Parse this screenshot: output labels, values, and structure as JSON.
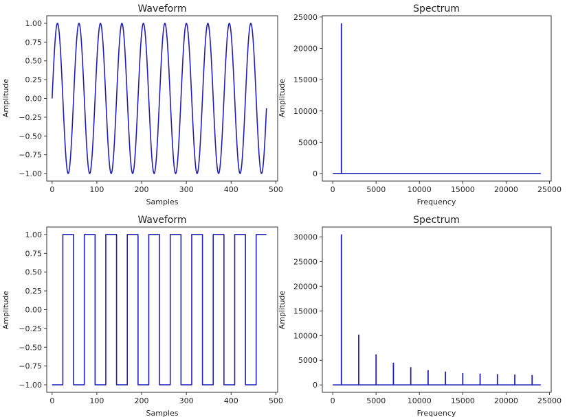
{
  "figure": {
    "line_color": "#1f1fb4",
    "axis_color": "#333333",
    "background": "#ffffff"
  },
  "chart_data": [
    {
      "id": "waveform-sine",
      "type": "line",
      "title": "Waveform",
      "xlabel": "Samples",
      "ylabel": "Amplitude",
      "xlim": [
        -12,
        504
      ],
      "ylim": [
        -1.1,
        1.1
      ],
      "xticks": [
        0,
        100,
        200,
        300,
        400,
        500
      ],
      "xtick_labels": [
        "0",
        "100",
        "200",
        "300",
        "400",
        "500"
      ],
      "yticks": [
        1.0,
        0.75,
        0.5,
        0.25,
        0.0,
        -0.25,
        -0.5,
        -0.75,
        -1.0
      ],
      "ytick_labels": [
        "1.00",
        "0.75",
        "0.50",
        "0.25",
        "0.00",
        "−0.25",
        "−0.50",
        "−0.75",
        "−1.00"
      ],
      "series": [
        {
          "name": "sine",
          "waveform": "sine",
          "period_samples": 48,
          "samples": 480,
          "amplitude": 1.0
        }
      ]
    },
    {
      "id": "spectrum-sine",
      "type": "line",
      "title": "Spectrum",
      "xlabel": "Frequency",
      "ylabel": "Amplitude",
      "xlim": [
        -1200,
        25200
      ],
      "ylim": [
        -1200,
        25200
      ],
      "xticks": [
        0,
        5000,
        10000,
        15000,
        20000,
        25000
      ],
      "xtick_labels": [
        "0",
        "5000",
        "10000",
        "15000",
        "20000",
        "25000"
      ],
      "yticks": [
        25000,
        20000,
        15000,
        10000,
        5000,
        0
      ],
      "ytick_labels": [
        "25000",
        "20000",
        "15000",
        "10000",
        "5000",
        "0"
      ],
      "baseline": {
        "x": [
          0,
          24000
        ],
        "y": 0
      },
      "peaks": [
        {
          "frequency": 1000,
          "amplitude": 24000
        }
      ]
    },
    {
      "id": "waveform-square",
      "type": "line",
      "title": "Waveform",
      "xlabel": "Samples",
      "ylabel": "Amplitude",
      "xlim": [
        -12,
        504
      ],
      "ylim": [
        -1.1,
        1.1
      ],
      "xticks": [
        0,
        100,
        200,
        300,
        400,
        500
      ],
      "xtick_labels": [
        "0",
        "100",
        "200",
        "300",
        "400",
        "500"
      ],
      "yticks": [
        1.0,
        0.75,
        0.5,
        0.25,
        0.0,
        -0.25,
        -0.5,
        -0.75,
        -1.0
      ],
      "ytick_labels": [
        "1.00",
        "0.75",
        "0.50",
        "0.25",
        "0.00",
        "−0.25",
        "−0.50",
        "−0.75",
        "−1.00"
      ],
      "series": [
        {
          "name": "square",
          "waveform": "square",
          "period_samples": 48,
          "samples": 480,
          "amplitude": 1.0
        }
      ]
    },
    {
      "id": "spectrum-square",
      "type": "line",
      "title": "Spectrum",
      "xlabel": "Frequency",
      "ylabel": "Amplitude",
      "xlim": [
        -1200,
        25200
      ],
      "ylim": [
        -1500,
        32000
      ],
      "xticks": [
        0,
        5000,
        10000,
        15000,
        20000,
        25000
      ],
      "xtick_labels": [
        "0",
        "5000",
        "10000",
        "15000",
        "20000",
        "25000"
      ],
      "yticks": [
        30000,
        25000,
        20000,
        15000,
        10000,
        5000,
        0
      ],
      "ytick_labels": [
        "30000",
        "25000",
        "20000",
        "15000",
        "10000",
        "5000",
        "0"
      ],
      "baseline": {
        "x": [
          0,
          24000
        ],
        "y": 0
      },
      "peaks": [
        {
          "frequency": 1000,
          "amplitude": 30500
        },
        {
          "frequency": 3000,
          "amplitude": 10200
        },
        {
          "frequency": 5000,
          "amplitude": 6200
        },
        {
          "frequency": 7000,
          "amplitude": 4500
        },
        {
          "frequency": 9000,
          "amplitude": 3600
        },
        {
          "frequency": 11000,
          "amplitude": 3000
        },
        {
          "frequency": 13000,
          "amplitude": 2700
        },
        {
          "frequency": 15000,
          "amplitude": 2400
        },
        {
          "frequency": 17000,
          "amplitude": 2300
        },
        {
          "frequency": 19000,
          "amplitude": 2200
        },
        {
          "frequency": 21000,
          "amplitude": 2100
        },
        {
          "frequency": 23000,
          "amplitude": 2000
        }
      ]
    }
  ]
}
